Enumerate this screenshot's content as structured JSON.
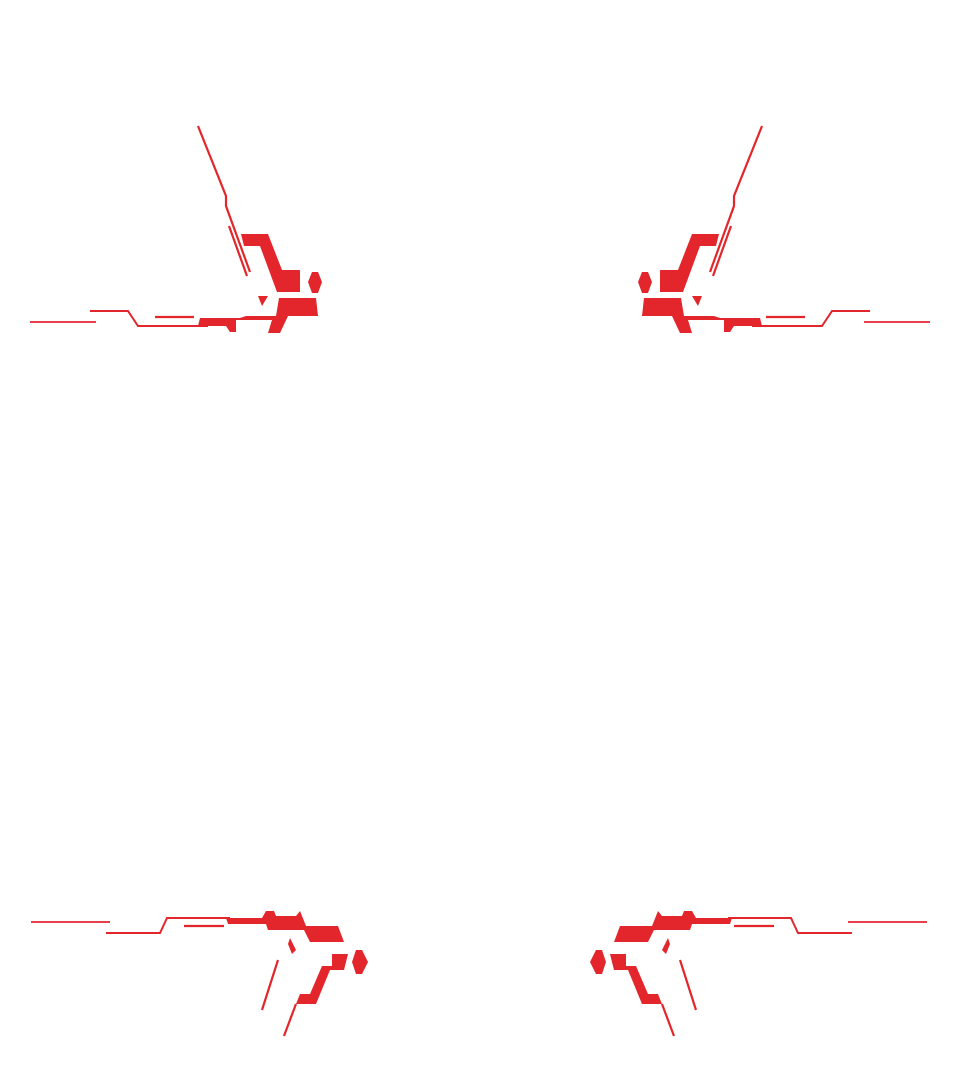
{
  "theme": {
    "background": "#ffffff",
    "accent": "#e3262b"
  },
  "ornaments": [
    {
      "name": "corner-ornament-top-left"
    },
    {
      "name": "corner-ornament-top-right"
    },
    {
      "name": "corner-ornament-bottom-left"
    },
    {
      "name": "corner-ornament-bottom-right"
    }
  ]
}
